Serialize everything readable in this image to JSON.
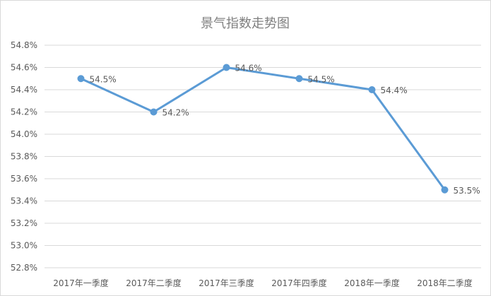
{
  "chart_data": {
    "type": "line",
    "title": "景气指数走势图",
    "categories": [
      "2017年一季度",
      "2017年二季度",
      "2017年三季度",
      "2017年四季度",
      "2018年一季度",
      "2018年二季度"
    ],
    "series": [
      {
        "values": [
          54.5,
          54.2,
          54.6,
          54.5,
          54.4,
          53.5
        ],
        "data_labels": [
          "54.5%",
          "54.2%",
          "54.6%",
          "54.5%",
          "54.4%",
          "53.5%"
        ]
      }
    ],
    "y_ticks": [
      "52.8%",
      "53.0%",
      "53.2%",
      "53.4%",
      "53.6%",
      "53.8%",
      "54.0%",
      "54.2%",
      "54.4%",
      "54.6%",
      "54.8%"
    ],
    "ylim": [
      52.8,
      54.8
    ],
    "grid": true,
    "legend": "none",
    "colors": {
      "series": "#5b9bd5",
      "grid": "#d9d9d9",
      "text": "#595959",
      "title": "#7f7f7f"
    }
  }
}
